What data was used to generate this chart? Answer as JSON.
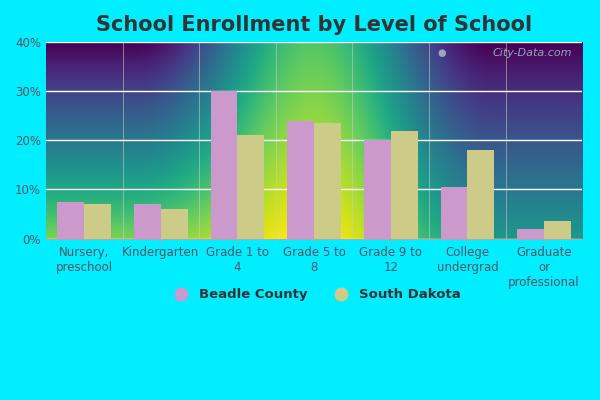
{
  "title": "School Enrollment by Level of School",
  "categories": [
    "Nursery,\npreschool",
    "Kindergarten",
    "Grade 1 to\n4",
    "Grade 5 to\n8",
    "Grade 9 to\n12",
    "College\nundergrad",
    "Graduate\nor\nprofessional"
  ],
  "beadle_values": [
    7.5,
    7.0,
    30.0,
    24.0,
    20.0,
    10.5,
    2.0
  ],
  "sd_values": [
    7.0,
    6.0,
    21.0,
    23.5,
    22.0,
    18.0,
    3.5
  ],
  "beadle_color": "#cc99cc",
  "sd_color": "#cccc88",
  "fig_bg_color": "#00eeff",
  "plot_bg_top": "#d4edda",
  "plot_bg_bottom": "#f0f5e0",
  "grid_color": "#e8efe8",
  "ylim": [
    0,
    40
  ],
  "yticks": [
    0,
    10,
    20,
    30,
    40
  ],
  "ytick_labels": [
    "0%",
    "10%",
    "20%",
    "30%",
    "40%"
  ],
  "legend_beadle": "Beadle County",
  "legend_sd": "South Dakota",
  "bar_width": 0.35,
  "title_fontsize": 15,
  "tick_fontsize": 8.5,
  "watermark": "City-Data.com"
}
